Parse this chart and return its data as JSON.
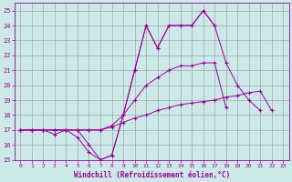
{
  "xlabel": "Windchill (Refroidissement éolien,°C)",
  "bg_color": "#cce8e8",
  "grid_color": "#999999",
  "line_color": "#990099",
  "xlim": [
    -0.5,
    23.5
  ],
  "ylim": [
    15,
    25.5
  ],
  "xticks": [
    0,
    1,
    2,
    3,
    4,
    5,
    6,
    7,
    8,
    9,
    10,
    11,
    12,
    13,
    14,
    15,
    16,
    17,
    18,
    19,
    20,
    21,
    22,
    23
  ],
  "yticks": [
    15,
    16,
    17,
    18,
    19,
    20,
    21,
    22,
    23,
    24,
    25
  ],
  "lines": [
    [
      17.0,
      17.0,
      17.0,
      17.0,
      17.0,
      17.0,
      16.0,
      15.0,
      15.3,
      18.0,
      21.0,
      24.0,
      22.5,
      24.0,
      24.0,
      24.0,
      25.0,
      24.0,
      null,
      null,
      null,
      null,
      null,
      null
    ],
    [
      17.0,
      17.0,
      17.0,
      16.7,
      17.0,
      16.5,
      15.5,
      15.0,
      15.3,
      18.0,
      21.0,
      24.0,
      22.5,
      24.0,
      24.0,
      24.0,
      25.0,
      24.0,
      21.5,
      20.0,
      19.0,
      18.3,
      null,
      null
    ],
    [
      17.0,
      17.0,
      17.0,
      17.0,
      17.0,
      17.0,
      17.0,
      17.0,
      17.3,
      18.0,
      19.0,
      20.0,
      20.5,
      21.0,
      21.3,
      21.3,
      21.5,
      21.5,
      18.5,
      null,
      null,
      null,
      null,
      null
    ],
    [
      17.0,
      17.0,
      17.0,
      17.0,
      17.0,
      17.0,
      17.0,
      17.0,
      17.2,
      17.5,
      17.8,
      18.0,
      18.3,
      18.5,
      18.7,
      18.8,
      18.9,
      19.0,
      19.2,
      19.3,
      19.5,
      19.6,
      18.3,
      null
    ]
  ]
}
